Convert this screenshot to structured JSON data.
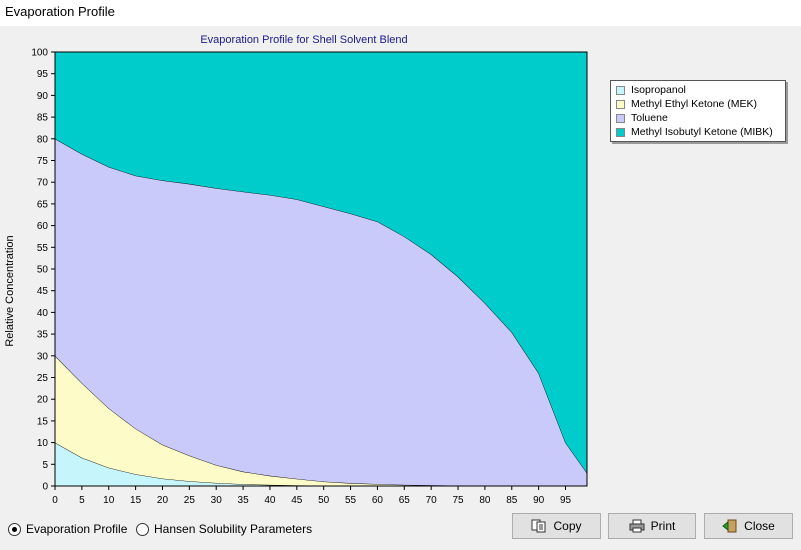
{
  "window": {
    "title": "Evaporation Profile"
  },
  "chart_data": {
    "type": "area",
    "stacked": true,
    "title": "Evaporation Profile for Shell Solvent Blend",
    "xlabel": "",
    "ylabel": "Relative Concentration",
    "xlim": [
      0,
      99
    ],
    "ylim": [
      0,
      100
    ],
    "x_ticks": [
      0,
      5,
      10,
      15,
      20,
      25,
      30,
      35,
      40,
      45,
      50,
      55,
      60,
      65,
      70,
      75,
      80,
      85,
      90,
      95
    ],
    "y_ticks": [
      0,
      5,
      10,
      15,
      20,
      25,
      30,
      35,
      40,
      45,
      50,
      55,
      60,
      65,
      70,
      75,
      80,
      85,
      90,
      95,
      100
    ],
    "grid": false,
    "legend_position": "top-right",
    "x": [
      0,
      5,
      10,
      15,
      20,
      25,
      30,
      35,
      40,
      45,
      50,
      55,
      60,
      65,
      70,
      75,
      80,
      85,
      90,
      95,
      99
    ],
    "series": [
      {
        "name": "Isopropanol",
        "color": "#c6f6fb",
        "values": [
          10,
          6.5,
          4.2,
          2.7,
          1.7,
          1.1,
          0.7,
          0.4,
          0.25,
          0.15,
          0.1,
          0.05,
          0.03,
          0.02,
          0.01,
          0,
          0,
          0,
          0,
          0,
          0
        ]
      },
      {
        "name": "Methyl Ethyl Ketone (MEK)",
        "color": "#fdfcc8",
        "values": [
          20,
          17.2,
          13.7,
          10.5,
          7.8,
          5.9,
          4.1,
          2.9,
          2.1,
          1.5,
          0.9,
          0.6,
          0.4,
          0.25,
          0.15,
          0.1,
          0.05,
          0.03,
          0,
          0,
          0
        ]
      },
      {
        "name": "Toluene",
        "color": "#c9c9fa",
        "values": [
          50,
          52.8,
          55.6,
          58.3,
          60.9,
          62.6,
          63.8,
          64.5,
          64.7,
          64.4,
          63.4,
          62.1,
          60.5,
          57.2,
          53.2,
          48.1,
          42.1,
          35.4,
          26,
          10,
          3
        ]
      },
      {
        "name": "Methyl Isobutyl Ketone (MIBK)",
        "color": "#00cccc",
        "values": [
          20,
          23.5,
          26.5,
          28.5,
          29.6,
          30.4,
          31.4,
          32.2,
          32.95,
          33.95,
          35.6,
          37.25,
          39.07,
          42.53,
          46.64,
          51.8,
          57.85,
          64.57,
          74,
          90,
          97
        ]
      }
    ]
  },
  "options": {
    "evaporation_profile": "Evaporation Profile",
    "hansen": "Hansen Solubility Parameters"
  },
  "buttons": {
    "copy": "Copy",
    "print": "Print",
    "close": "Close"
  }
}
